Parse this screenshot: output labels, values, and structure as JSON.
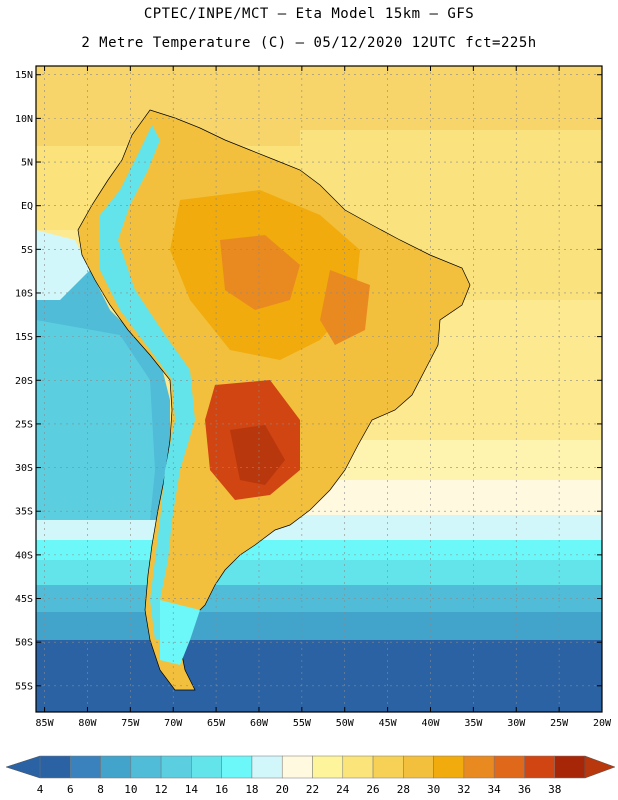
{
  "header": {
    "line1": "CPTEC/INPE/MCT –  Eta Model 15km – GFS",
    "line2": "2 Metre Temperature (C) – 05/12/2020 12UTC fct=225h"
  },
  "map": {
    "lat_labels": [
      "15N",
      "10N",
      "5N",
      "EQ",
      "5S",
      "10S",
      "15S",
      "20S",
      "25S",
      "30S",
      "35S",
      "40S",
      "45S",
      "50S",
      "55S"
    ],
    "lat_values": [
      15,
      10,
      5,
      0,
      -5,
      -10,
      -15,
      -20,
      -25,
      -30,
      -35,
      -40,
      -45,
      -50,
      -55
    ],
    "lon_labels": [
      "85W",
      "80W",
      "75W",
      "70W",
      "65W",
      "60W",
      "55W",
      "50W",
      "45W",
      "40W",
      "35W",
      "30W",
      "25W",
      "20W"
    ],
    "lon_values": [
      -85,
      -80,
      -75,
      -70,
      -65,
      -60,
      -55,
      -50,
      -45,
      -40,
      -35,
      -30,
      -25,
      -20
    ],
    "extent": {
      "lon_min": -86,
      "lon_max": -20,
      "lat_min": -58,
      "lat_max": 16
    }
  },
  "colorbar": {
    "labels": [
      "4",
      "6",
      "8",
      "10",
      "12",
      "14",
      "16",
      "18",
      "20",
      "22",
      "24",
      "26",
      "28",
      "30",
      "32",
      "34",
      "36",
      "38"
    ],
    "colors": [
      "#2a62a4",
      "#3a82bd",
      "#42a3cb",
      "#50bcd8",
      "#5bcfe0",
      "#63e4ea",
      "#6cf7f8",
      "#d1f7fb",
      "#fff9df",
      "#fdf49c",
      "#fbe47a",
      "#f7d156",
      "#f2c03c",
      "#f1ab0c",
      "#e98a21",
      "#e0681b",
      "#d04512",
      "#a82608"
    ],
    "under_color": "#2a62a4",
    "over_color": "#b8370d"
  }
}
